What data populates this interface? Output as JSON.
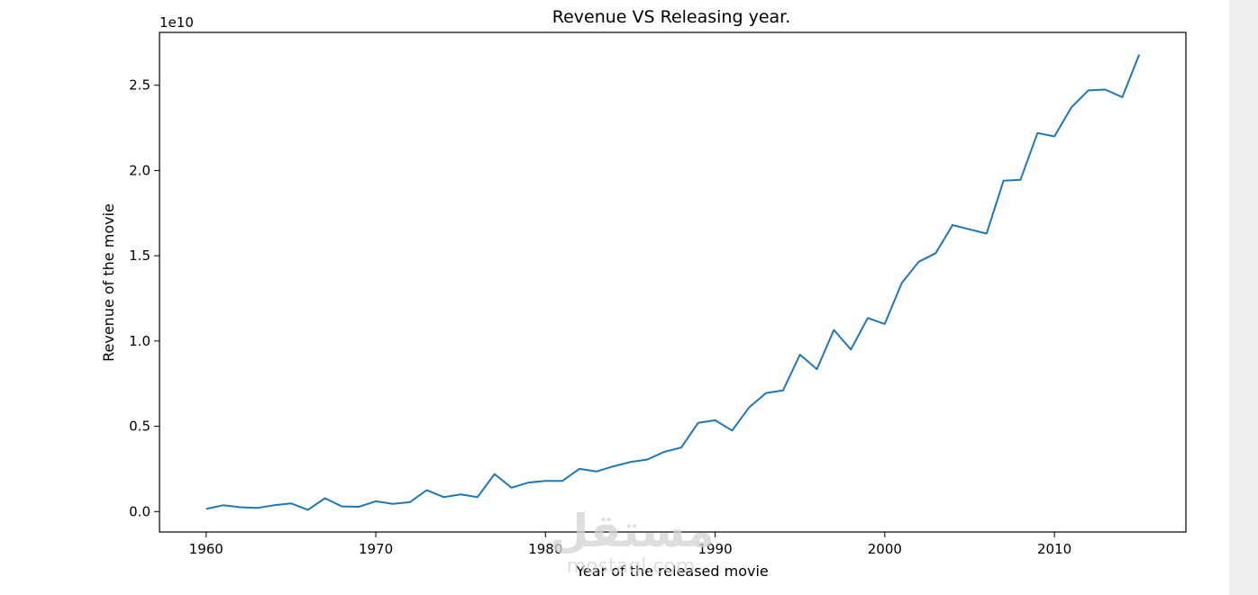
{
  "chart_data": {
    "type": "line",
    "title": "Revenue VS Releasing year.",
    "xlabel": "Year of the released movie",
    "ylabel": "Revenue of the movie",
    "offset_label": "1e10",
    "xlim": [
      1957.25,
      2017.75
    ],
    "ylim": [
      -0.12,
      2.81
    ],
    "x_ticks": [
      1960,
      1970,
      1980,
      1990,
      2000,
      2010
    ],
    "y_ticks": [
      0.0,
      0.5,
      1.0,
      1.5,
      2.0,
      2.5
    ],
    "x_tick_labels": [
      "1960",
      "1970",
      "1980",
      "1990",
      "2000",
      "2010"
    ],
    "y_tick_labels": [
      "0.0",
      "0.5",
      "1.0",
      "1.5",
      "2.0",
      "2.5"
    ],
    "grid": false,
    "series": [
      {
        "name": "Revenue",
        "color": "#1f77b4",
        "x": [
          1960,
          1961,
          1962,
          1963,
          1964,
          1965,
          1966,
          1967,
          1968,
          1969,
          1970,
          1971,
          1972,
          1973,
          1974,
          1975,
          1976,
          1977,
          1978,
          1979,
          1980,
          1981,
          1982,
          1983,
          1984,
          1985,
          1986,
          1987,
          1988,
          1989,
          1990,
          1991,
          1992,
          1993,
          1994,
          1995,
          1996,
          1997,
          1998,
          1999,
          2000,
          2001,
          2002,
          2003,
          2004,
          2005,
          2006,
          2007,
          2008,
          2009,
          2010,
          2011,
          2012,
          2013,
          2014,
          2015
        ],
        "values": [
          0.015,
          0.037,
          0.025,
          0.021,
          0.037,
          0.048,
          0.01,
          0.078,
          0.03,
          0.028,
          0.06,
          0.045,
          0.055,
          0.125,
          0.085,
          0.1,
          0.085,
          0.22,
          0.14,
          0.17,
          0.18,
          0.18,
          0.25,
          0.235,
          0.265,
          0.29,
          0.305,
          0.35,
          0.375,
          0.52,
          0.535,
          0.475,
          0.61,
          0.695,
          0.71,
          0.92,
          0.835,
          1.065,
          0.95,
          1.135,
          1.1,
          1.34,
          1.465,
          1.515,
          1.68,
          1.655,
          1.63,
          1.94,
          1.945,
          2.22,
          2.2,
          2.37,
          2.47,
          2.475,
          2.43,
          2.68
        ]
      }
    ]
  },
  "watermark": {
    "text": "مستقل",
    "subtext": "mostaql.com"
  },
  "colors": {
    "line": "#1f77b4",
    "axes": "#000000",
    "sidebar": "#efefef"
  }
}
